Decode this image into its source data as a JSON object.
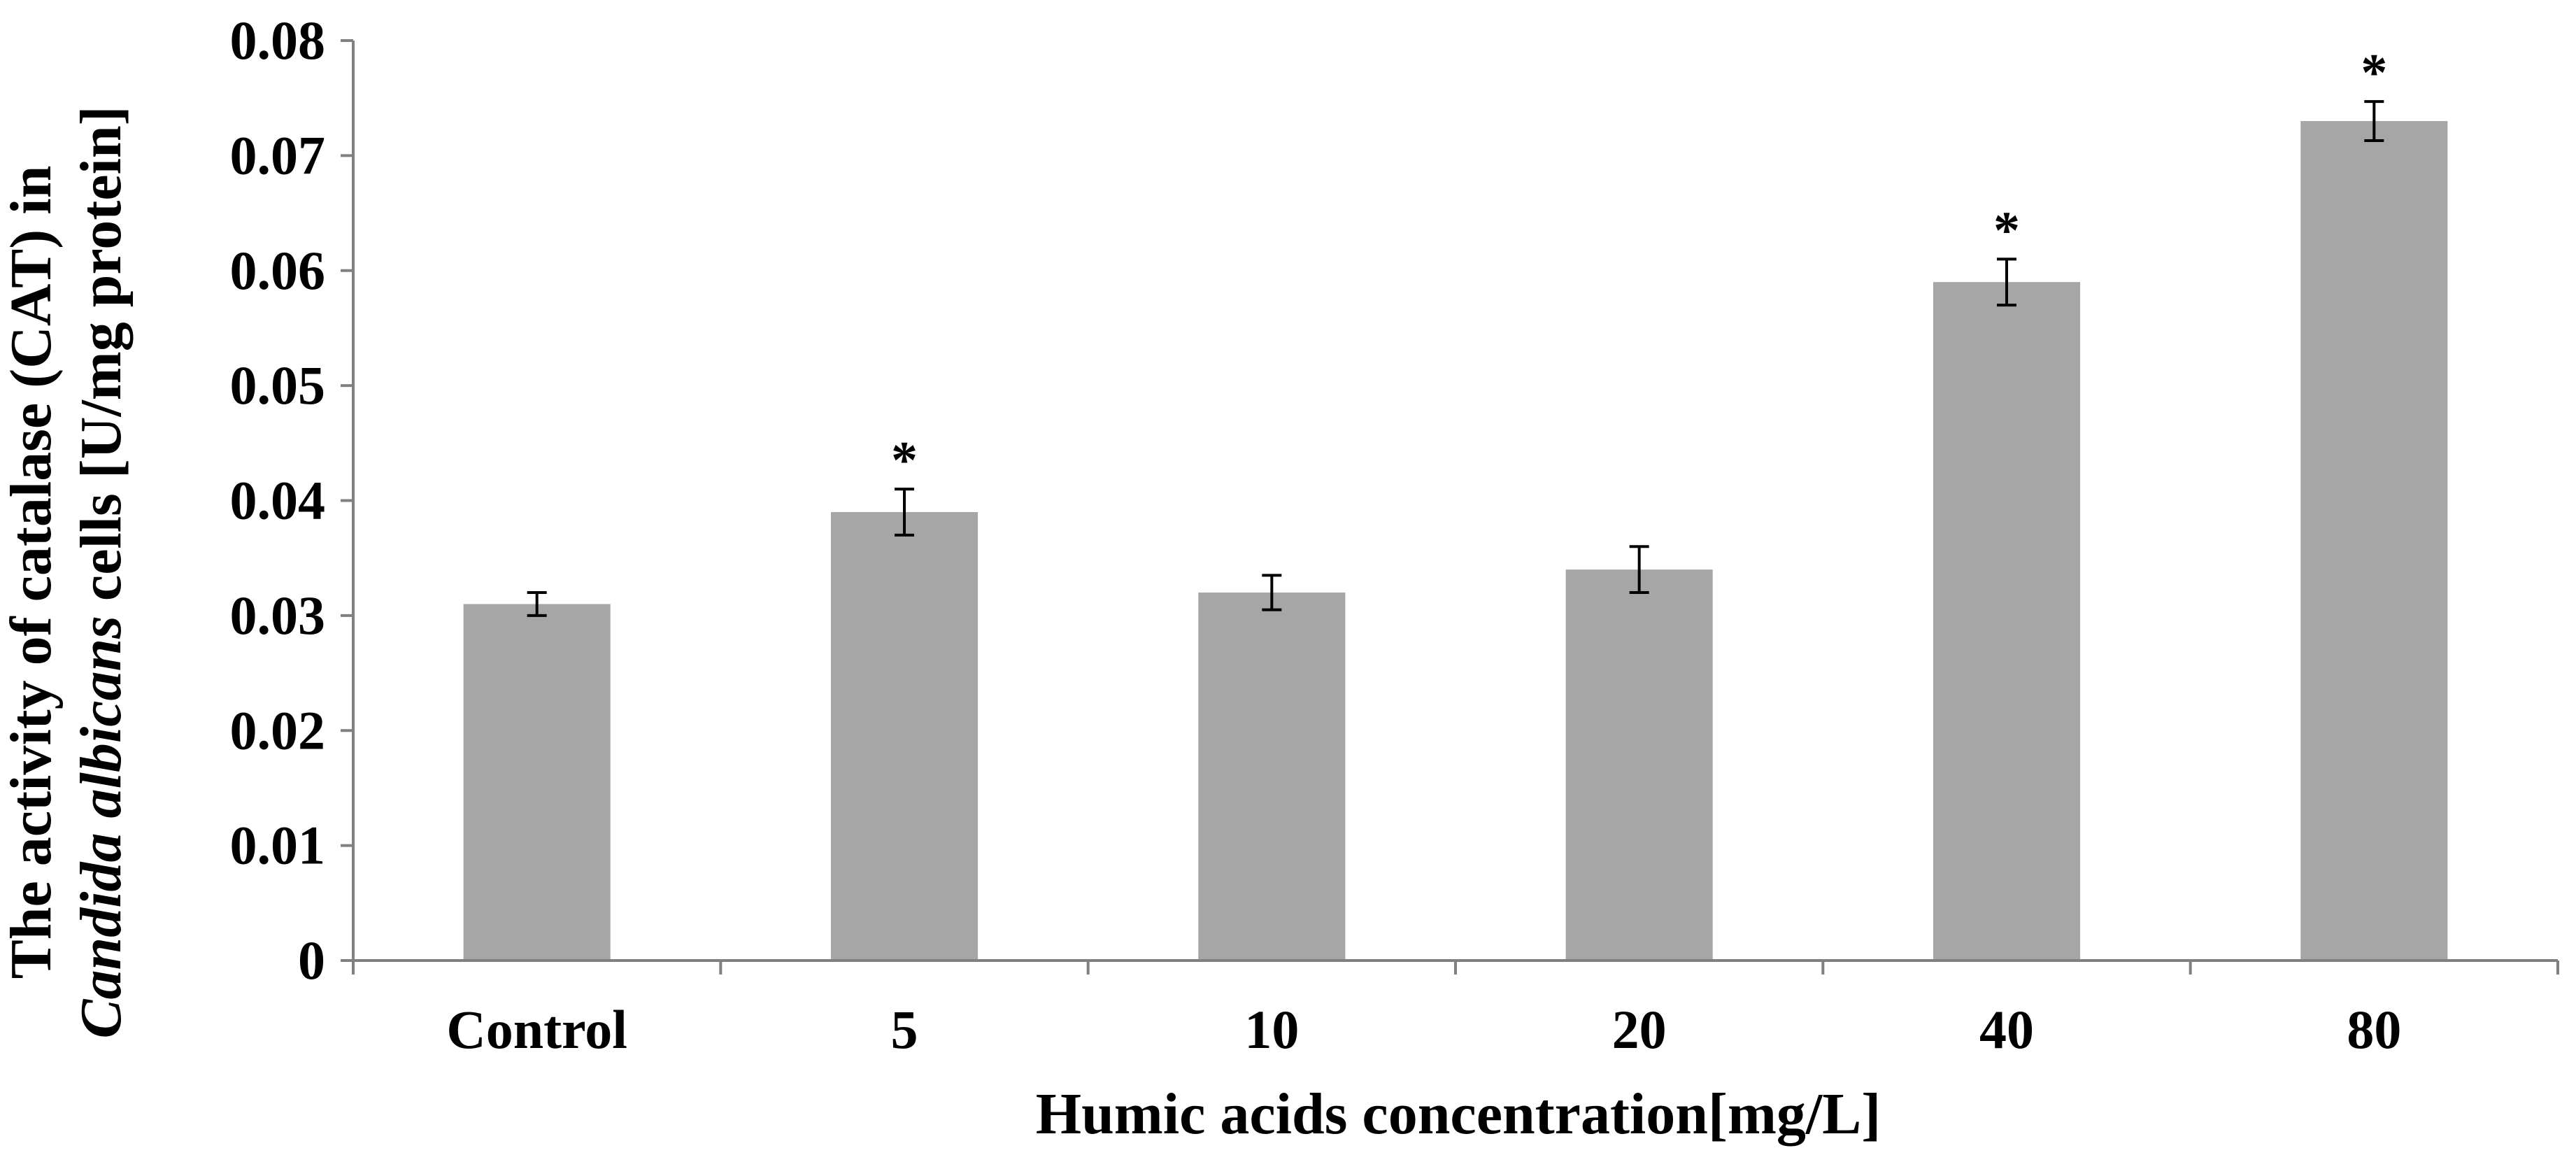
{
  "chart_data": {
    "type": "bar",
    "categories": [
      "Control",
      "5",
      "10",
      "20",
      "40",
      "80"
    ],
    "values": [
      0.031,
      0.039,
      0.032,
      0.034,
      0.059,
      0.073
    ],
    "errors": [
      0.001,
      0.002,
      0.0015,
      0.002,
      0.002,
      0.0017
    ],
    "significance": [
      "",
      "*",
      "",
      "",
      "*",
      "*"
    ],
    "xlabel": "Humic acids concentration[mg/L]",
    "ylabel_line1": "The activity of catalase (CAT) in",
    "ylabel_line2_italic": "Candida albicans",
    "ylabel_line2_rest": " cells [U/mg protein]",
    "ylim": [
      0,
      0.08
    ],
    "yticks": [
      "0",
      "0.01",
      "0.02",
      "0.03",
      "0.04",
      "0.05",
      "0.06",
      "0.07",
      "0.08"
    ],
    "grid": false,
    "legend": "none",
    "colors": {
      "bar": "#a6a6a6",
      "axis": "#808080",
      "text": "#000000"
    }
  }
}
